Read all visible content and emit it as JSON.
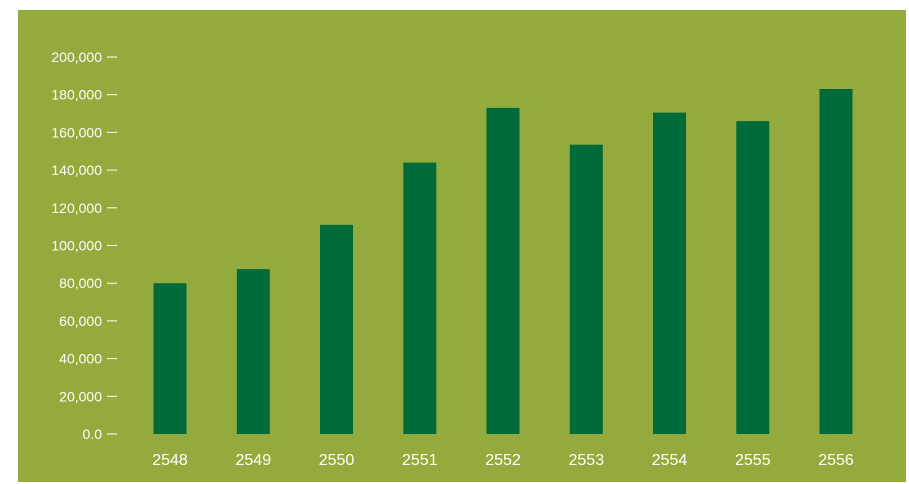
{
  "chart_data": {
    "type": "bar",
    "title": "",
    "xlabel": "",
    "ylabel": "",
    "categories": [
      "2548",
      "2549",
      "2550",
      "2551",
      "2552",
      "2553",
      "2554",
      "2555",
      "2556"
    ],
    "values": [
      80000,
      87500,
      111000,
      144000,
      173000,
      153500,
      170500,
      166000,
      183000
    ],
    "ylim": [
      0,
      200000
    ],
    "yticks": [
      0,
      20000,
      40000,
      60000,
      80000,
      100000,
      120000,
      140000,
      160000,
      180000,
      200000
    ],
    "ytick_labels": [
      "0.0",
      "20,000",
      "40,000",
      "60,000",
      "80,000",
      "100,000",
      "120,000",
      "140,000",
      "160,000",
      "180,000",
      "200,000"
    ],
    "grid": false,
    "legend": "none",
    "colors": {
      "background": "#93AB3C",
      "bar": "#006B3A",
      "text": "#FFFFFF"
    }
  }
}
